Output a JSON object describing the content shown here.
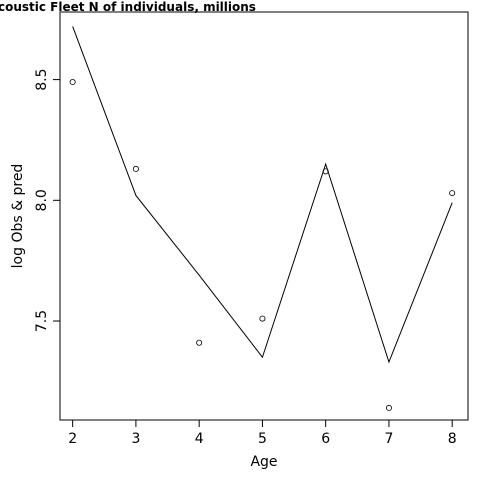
{
  "chart_data": {
    "type": "line",
    "title": "coustic Fleet   N of individuals, millions",
    "xlabel": "Age",
    "ylabel": "log Obs & pred",
    "x": [
      2,
      3,
      4,
      5,
      6,
      7,
      8
    ],
    "series": [
      {
        "type": "line",
        "values": [
          8.72,
          8.02,
          7.69,
          7.35,
          8.15,
          7.33,
          7.99
        ]
      },
      {
        "type": "scatter",
        "values": [
          8.49,
          8.13,
          7.41,
          7.51,
          8.12,
          7.14,
          8.03
        ]
      }
    ],
    "xlim": [
      1.8,
      8.25
    ],
    "ylim": [
      7.09,
      8.78
    ],
    "x_ticks": [
      "2",
      "3",
      "4",
      "5",
      "6",
      "7",
      "8"
    ],
    "y_ticks": [
      "7.5",
      "8.0",
      "8.5"
    ],
    "grid": false
  }
}
